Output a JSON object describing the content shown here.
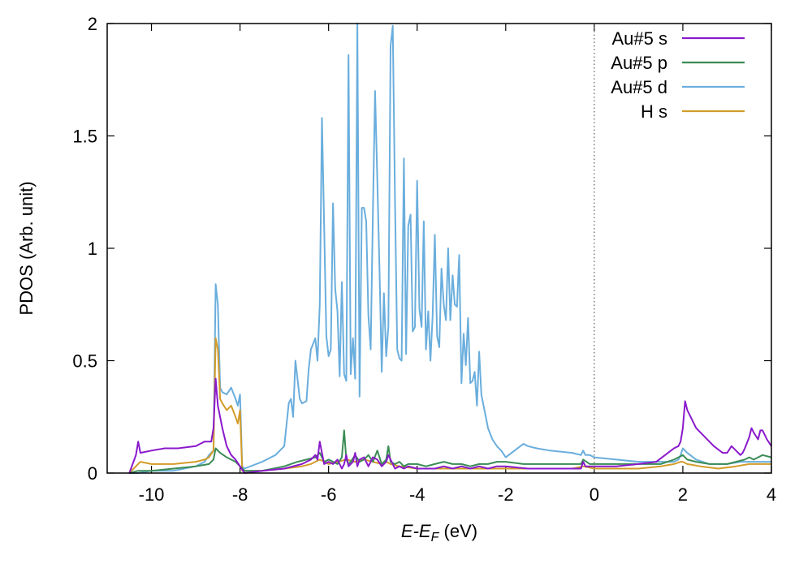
{
  "chart_data": {
    "type": "line",
    "xlabel": {
      "main": "E-E",
      "sub": "F",
      "unit": " (eV)"
    },
    "ylabel": "PDOS (Arb. unit)",
    "xlim": [
      -11,
      4
    ],
    "ylim": [
      0,
      2
    ],
    "xticks": [
      -10,
      -8,
      -6,
      -4,
      -2,
      0,
      2,
      4
    ],
    "yticks": [
      0,
      0.5,
      1,
      1.5,
      2
    ],
    "xtick_labels": [
      "-10",
      "-8",
      "-6",
      "-4",
      "-2",
      "0",
      "2",
      "4"
    ],
    "ytick_labels": [
      "0",
      "0.5",
      "1",
      "1.5",
      "2"
    ],
    "fermi_line": 0,
    "legend_position": "top-right",
    "series": [
      {
        "name": "Au#5 s",
        "color": "#8a19cc",
        "x": [
          -10.5,
          -10.35,
          -10.3,
          -10.25,
          -10.0,
          -9.7,
          -9.4,
          -9.0,
          -8.9,
          -8.8,
          -8.75,
          -8.65,
          -8.6,
          -8.55,
          -8.5,
          -8.4,
          -8.3,
          -8.2,
          -8.1,
          -8.0,
          -7.9,
          -7.5,
          -7.0,
          -6.6,
          -6.4,
          -6.3,
          -6.25,
          -6.2,
          -6.1,
          -6.0,
          -5.9,
          -5.8,
          -5.7,
          -5.65,
          -5.6,
          -5.55,
          -5.45,
          -5.4,
          -5.35,
          -5.3,
          -5.2,
          -5.1,
          -5.0,
          -4.9,
          -4.8,
          -4.7,
          -4.65,
          -4.6,
          -4.5,
          -4.4,
          -4.3,
          -4.2,
          -4.0,
          -3.8,
          -3.6,
          -3.4,
          -3.2,
          -3.0,
          -2.8,
          -2.6,
          -2.4,
          -2.2,
          -2.0,
          -1.5,
          -1.0,
          -0.5,
          -0.3,
          -0.25,
          -0.2,
          0.0,
          0.5,
          1.0,
          1.4,
          1.6,
          1.8,
          1.9,
          1.95,
          2.0,
          2.05,
          2.1,
          2.3,
          2.5,
          2.7,
          2.9,
          3.0,
          3.1,
          3.2,
          3.3,
          3.35,
          3.4,
          3.5,
          3.55,
          3.6,
          3.7,
          3.75,
          3.8,
          3.9,
          4.0
        ],
        "y": [
          0.0,
          0.08,
          0.14,
          0.09,
          0.1,
          0.11,
          0.11,
          0.12,
          0.13,
          0.14,
          0.14,
          0.14,
          0.2,
          0.42,
          0.3,
          0.2,
          0.12,
          0.08,
          0.06,
          0.03,
          0.0,
          0.01,
          0.02,
          0.04,
          0.06,
          0.08,
          0.06,
          0.14,
          0.04,
          0.05,
          0.04,
          0.06,
          0.02,
          0.04,
          0.08,
          0.03,
          0.05,
          0.09,
          0.03,
          0.06,
          0.07,
          0.03,
          0.07,
          0.06,
          0.03,
          0.05,
          0.08,
          0.06,
          0.02,
          0.03,
          0.02,
          0.03,
          0.02,
          0.02,
          0.02,
          0.03,
          0.02,
          0.03,
          0.02,
          0.03,
          0.02,
          0.03,
          0.03,
          0.02,
          0.02,
          0.02,
          0.02,
          0.05,
          0.03,
          0.03,
          0.03,
          0.04,
          0.05,
          0.08,
          0.11,
          0.12,
          0.14,
          0.2,
          0.32,
          0.28,
          0.2,
          0.16,
          0.12,
          0.09,
          0.09,
          0.12,
          0.1,
          0.08,
          0.09,
          0.11,
          0.16,
          0.2,
          0.18,
          0.15,
          0.19,
          0.19,
          0.15,
          0.12
        ]
      },
      {
        "name": "Au#5 p",
        "color": "#3a8c55",
        "x": [
          -10.5,
          -10.3,
          -10.0,
          -9.5,
          -9.0,
          -8.7,
          -8.6,
          -8.55,
          -8.45,
          -8.3,
          -8.2,
          -8.1,
          -8.0,
          -7.9,
          -7.5,
          -7.0,
          -6.7,
          -6.5,
          -6.3,
          -6.2,
          -6.1,
          -6.0,
          -5.8,
          -5.7,
          -5.65,
          -5.6,
          -5.55,
          -5.5,
          -5.4,
          -5.3,
          -5.2,
          -5.1,
          -5.0,
          -4.9,
          -4.8,
          -4.7,
          -4.65,
          -4.6,
          -4.5,
          -4.4,
          -4.3,
          -4.2,
          -4.0,
          -3.8,
          -3.6,
          -3.4,
          -3.2,
          -3.0,
          -2.8,
          -2.6,
          -2.4,
          -2.2,
          -2.0,
          -1.6,
          -1.5,
          -1.0,
          -0.5,
          -0.3,
          -0.25,
          -0.1,
          0.0,
          0.5,
          1.0,
          1.5,
          1.8,
          1.9,
          2.0,
          2.1,
          2.3,
          2.6,
          3.0,
          3.2,
          3.4,
          3.5,
          3.6,
          3.7,
          3.8,
          4.0
        ],
        "y": [
          0.0,
          0.01,
          0.01,
          0.02,
          0.03,
          0.04,
          0.06,
          0.11,
          0.09,
          0.07,
          0.06,
          0.05,
          0.03,
          0.01,
          0.01,
          0.03,
          0.05,
          0.06,
          0.07,
          0.09,
          0.05,
          0.06,
          0.04,
          0.07,
          0.19,
          0.06,
          0.04,
          0.05,
          0.08,
          0.05,
          0.06,
          0.08,
          0.05,
          0.1,
          0.04,
          0.06,
          0.12,
          0.05,
          0.04,
          0.05,
          0.03,
          0.04,
          0.04,
          0.03,
          0.04,
          0.05,
          0.04,
          0.04,
          0.03,
          0.04,
          0.04,
          0.05,
          0.05,
          0.04,
          0.04,
          0.04,
          0.04,
          0.04,
          0.06,
          0.04,
          0.04,
          0.04,
          0.04,
          0.04,
          0.06,
          0.07,
          0.08,
          0.06,
          0.05,
          0.04,
          0.04,
          0.05,
          0.06,
          0.07,
          0.06,
          0.07,
          0.08,
          0.07
        ]
      },
      {
        "name": "Au#5 d",
        "color": "#6aaedd",
        "x": [
          -10.5,
          -10.3,
          -10.0,
          -9.5,
          -9.0,
          -8.8,
          -8.7,
          -8.6,
          -8.55,
          -8.5,
          -8.45,
          -8.4,
          -8.3,
          -8.2,
          -8.1,
          -8.05,
          -8.0,
          -7.95,
          -7.9,
          -7.5,
          -7.2,
          -7.0,
          -6.9,
          -6.85,
          -6.8,
          -6.75,
          -6.65,
          -6.6,
          -6.5,
          -6.45,
          -6.4,
          -6.3,
          -6.25,
          -6.2,
          -6.15,
          -6.1,
          -6.05,
          -6.0,
          -5.95,
          -5.9,
          -5.85,
          -5.8,
          -5.75,
          -5.7,
          -5.65,
          -5.6,
          -5.55,
          -5.5,
          -5.45,
          -5.4,
          -5.35,
          -5.3,
          -5.25,
          -5.2,
          -5.15,
          -5.1,
          -5.05,
          -5.0,
          -4.95,
          -4.9,
          -4.85,
          -4.8,
          -4.75,
          -4.7,
          -4.65,
          -4.6,
          -4.55,
          -4.5,
          -4.45,
          -4.4,
          -4.35,
          -4.3,
          -4.25,
          -4.2,
          -4.15,
          -4.1,
          -4.05,
          -4.0,
          -3.95,
          -3.9,
          -3.85,
          -3.8,
          -3.75,
          -3.7,
          -3.65,
          -3.6,
          -3.55,
          -3.5,
          -3.45,
          -3.4,
          -3.35,
          -3.3,
          -3.25,
          -3.2,
          -3.15,
          -3.1,
          -3.05,
          -3.0,
          -2.95,
          -2.9,
          -2.85,
          -2.8,
          -2.75,
          -2.7,
          -2.65,
          -2.6,
          -2.55,
          -2.5,
          -2.45,
          -2.4,
          -2.3,
          -2.2,
          -2.1,
          -2.0,
          -1.8,
          -1.6,
          -1.5,
          -1.3,
          -1.0,
          -0.5,
          -0.3,
          -0.25,
          -0.2,
          -0.1,
          0.0,
          0.5,
          1.0,
          1.5,
          1.8,
          1.9,
          1.95,
          2.0,
          2.1,
          2.3,
          2.6,
          3.0,
          3.3,
          3.5,
          3.7,
          3.9,
          4.0
        ],
        "y": [
          0.0,
          0.0,
          0.01,
          0.01,
          0.03,
          0.05,
          0.08,
          0.1,
          0.84,
          0.75,
          0.38,
          0.36,
          0.35,
          0.38,
          0.33,
          0.3,
          0.35,
          0.03,
          0.02,
          0.05,
          0.08,
          0.12,
          0.31,
          0.33,
          0.25,
          0.5,
          0.33,
          0.31,
          0.32,
          0.46,
          0.55,
          0.6,
          0.5,
          0.75,
          1.58,
          1.1,
          0.61,
          0.52,
          0.55,
          1.2,
          0.82,
          0.72,
          0.43,
          0.85,
          0.44,
          0.41,
          1.86,
          0.44,
          0.6,
          0.42,
          2.0,
          0.34,
          1.18,
          1.18,
          1.12,
          0.7,
          0.55,
          1.15,
          1.7,
          1.3,
          0.9,
          0.45,
          0.8,
          0.52,
          0.65,
          1.9,
          1.99,
          1.2,
          0.55,
          0.51,
          0.5,
          1.4,
          0.53,
          1.1,
          1.15,
          0.63,
          0.65,
          1.3,
          0.73,
          0.65,
          1.12,
          0.55,
          0.72,
          0.5,
          0.7,
          1.06,
          0.61,
          0.56,
          0.91,
          0.75,
          0.68,
          1.0,
          0.68,
          0.88,
          0.75,
          0.74,
          0.97,
          0.4,
          0.62,
          0.48,
          0.69,
          0.4,
          0.41,
          0.45,
          0.3,
          0.54,
          0.35,
          0.3,
          0.25,
          0.2,
          0.15,
          0.12,
          0.1,
          0.07,
          0.1,
          0.13,
          0.12,
          0.11,
          0.1,
          0.09,
          0.08,
          0.1,
          0.08,
          0.08,
          0.07,
          0.06,
          0.05,
          0.05,
          0.05,
          0.06,
          0.08,
          0.11,
          0.09,
          0.06,
          0.04,
          0.04,
          0.05,
          0.05,
          0.05,
          0.05,
          0.05
        ]
      },
      {
        "name": "H s",
        "color": "#d39c2a",
        "x": [
          -10.5,
          -10.35,
          -10.25,
          -10.0,
          -9.5,
          -9.0,
          -8.8,
          -8.7,
          -8.6,
          -8.55,
          -8.5,
          -8.45,
          -8.4,
          -8.3,
          -8.2,
          -8.1,
          -8.05,
          -8.0,
          -7.95,
          -7.9,
          -7.5,
          -7.0,
          -6.6,
          -6.4,
          -6.2,
          -6.0,
          -5.8,
          -5.6,
          -5.4,
          -5.2,
          -5.0,
          -4.8,
          -4.7,
          -4.6,
          -4.4,
          -4.0,
          -3.5,
          -3.0,
          -2.5,
          -2.0,
          -1.5,
          -1.0,
          -0.5,
          -0.25,
          0.0,
          0.5,
          1.0,
          1.5,
          1.8,
          1.95,
          2.0,
          2.1,
          2.4,
          2.8,
          3.2,
          3.5,
          3.7,
          4.0
        ],
        "y": [
          0.0,
          0.03,
          0.05,
          0.04,
          0.04,
          0.05,
          0.06,
          0.07,
          0.1,
          0.6,
          0.55,
          0.33,
          0.31,
          0.28,
          0.3,
          0.25,
          0.22,
          0.28,
          0.01,
          0.01,
          0.01,
          0.02,
          0.03,
          0.04,
          0.06,
          0.04,
          0.05,
          0.06,
          0.05,
          0.06,
          0.05,
          0.04,
          0.05,
          0.04,
          0.03,
          0.02,
          0.02,
          0.02,
          0.02,
          0.02,
          0.02,
          0.02,
          0.02,
          0.03,
          0.02,
          0.02,
          0.02,
          0.03,
          0.04,
          0.05,
          0.05,
          0.04,
          0.03,
          0.02,
          0.03,
          0.04,
          0.04,
          0.04
        ]
      }
    ]
  }
}
